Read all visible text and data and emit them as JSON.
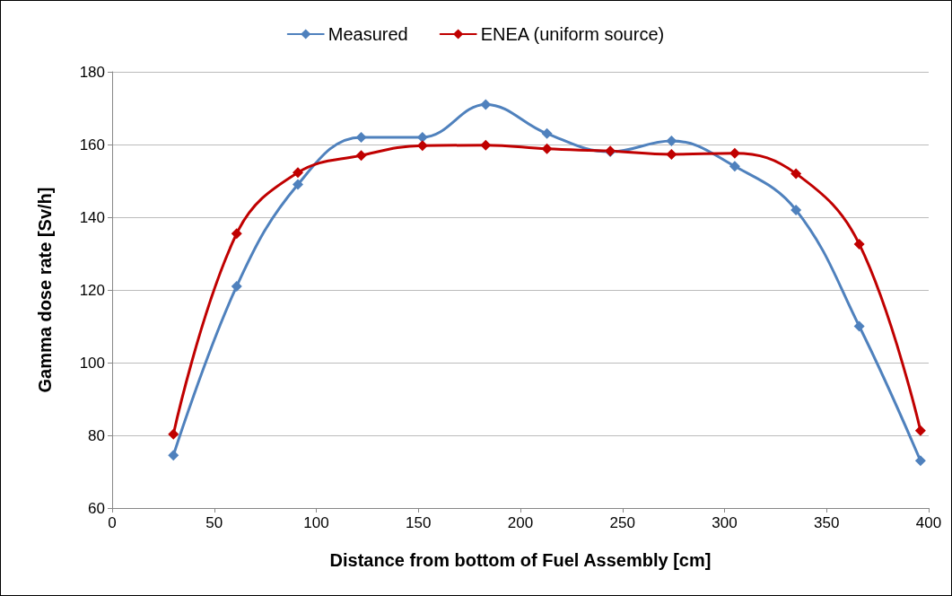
{
  "chart_data": {
    "type": "line",
    "xlabel": "Distance from bottom of Fuel Assembly [cm]",
    "ylabel": "Gamma dose rate [Sv/h]",
    "series": [
      {
        "name": "Measured",
        "color": "#4f81bd",
        "x": [
          30,
          61,
          91,
          122,
          152,
          183,
          213,
          244,
          274,
          305,
          335,
          366,
          396
        ],
        "values": [
          74.5,
          121,
          149,
          162,
          162,
          171,
          163,
          158,
          161,
          154,
          142,
          110,
          73
        ]
      },
      {
        "name": "ENEA (uniform source)",
        "color": "#c00000",
        "x": [
          30,
          61,
          91,
          122,
          152,
          183,
          213,
          244,
          274,
          305,
          335,
          366,
          396
        ],
        "values": [
          80.3,
          135.5,
          152.3,
          157,
          159.7,
          159.8,
          158.8,
          158.2,
          157.3,
          157.6,
          152,
          132.6,
          81.3
        ]
      }
    ],
    "xlim": [
      0,
      400
    ],
    "xticks": [
      0,
      50,
      100,
      150,
      200,
      250,
      300,
      350,
      400
    ],
    "ylim": [
      60,
      180
    ],
    "yticks": [
      60,
      80,
      100,
      120,
      140,
      160,
      180
    ],
    "grid": "y",
    "legend": "top",
    "marker": "diamond",
    "line_style": "solid"
  }
}
